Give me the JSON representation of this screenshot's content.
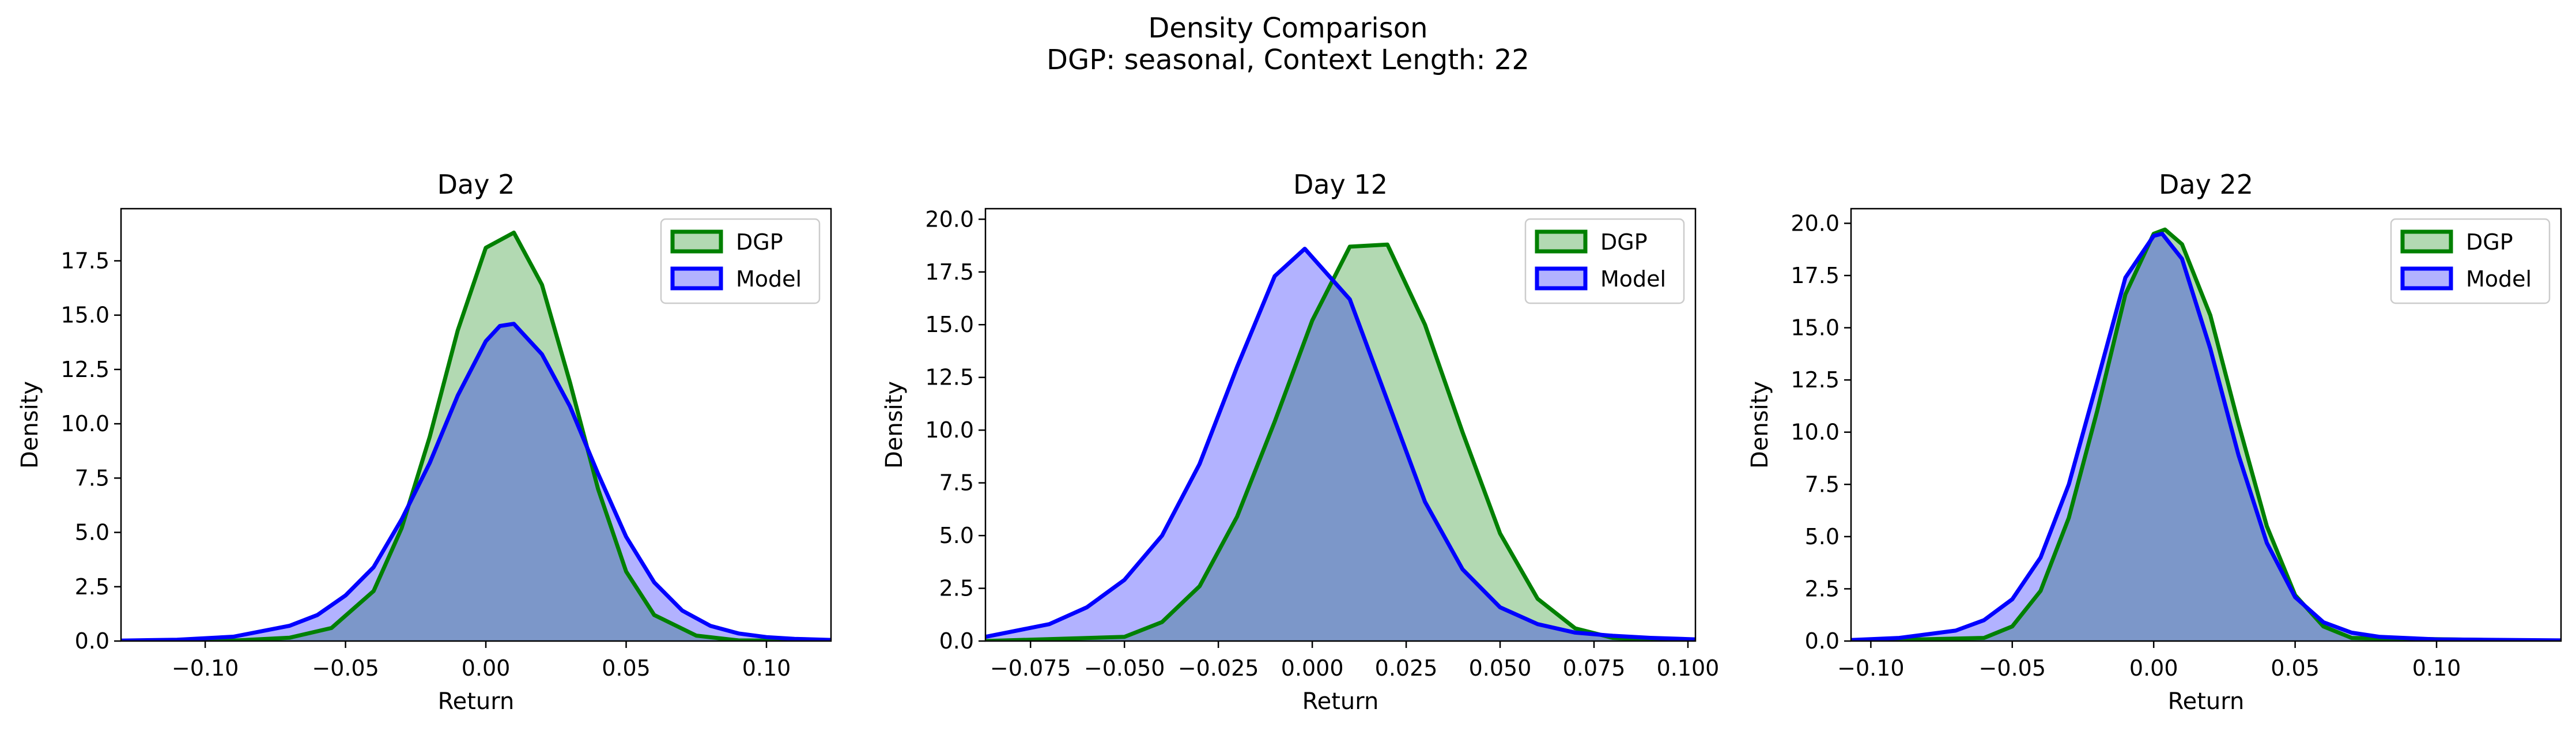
{
  "figure": {
    "title_line1": "Density Comparison",
    "title_line2": "DGP: seasonal, Context Length: 22"
  },
  "colors": {
    "dgp_line": "#008000",
    "dgp_fill": "#b0dab0",
    "model_line": "#0000ff",
    "model_fill": "#b0b0ff",
    "overlap_fill": "#7f9ac8",
    "overlap_dgp_line": "#1b5a55"
  },
  "chart_data": [
    {
      "type": "area",
      "title": "Day 2",
      "xlabel": "Return",
      "ylabel": "Density",
      "xlim": [
        -0.13,
        0.123
      ],
      "ylim": [
        0,
        19.9
      ],
      "xticks": [
        -0.1,
        -0.05,
        0.0,
        0.05,
        0.1
      ],
      "xtick_labels": [
        "−0.10",
        "−0.05",
        "0.00",
        "0.05",
        "0.10"
      ],
      "yticks": [
        0,
        2.5,
        5,
        7.5,
        10,
        12.5,
        15,
        17.5
      ],
      "ytick_labels": [
        "0.0",
        "2.5",
        "5.0",
        "7.5",
        "10.0",
        "12.5",
        "15.0",
        "17.5"
      ],
      "legend": [
        "DGP",
        "Model"
      ],
      "legend_position": "top-right",
      "series": [
        {
          "name": "DGP",
          "x": [
            -0.13,
            -0.09,
            -0.07,
            -0.055,
            -0.04,
            -0.03,
            -0.02,
            -0.01,
            0.0,
            0.01,
            0.02,
            0.03,
            0.04,
            0.05,
            0.06,
            0.075,
            0.09,
            0.123
          ],
          "y": [
            0,
            0.02,
            0.15,
            0.6,
            2.3,
            5.2,
            9.4,
            14.3,
            18.1,
            18.8,
            16.4,
            11.9,
            7.0,
            3.2,
            1.2,
            0.25,
            0.03,
            0
          ]
        },
        {
          "name": "Model",
          "x": [
            -0.13,
            -0.11,
            -0.09,
            -0.07,
            -0.06,
            -0.05,
            -0.04,
            -0.03,
            -0.02,
            -0.01,
            0.0,
            0.005,
            0.01,
            0.02,
            0.03,
            0.04,
            0.05,
            0.06,
            0.07,
            0.08,
            0.09,
            0.1,
            0.11,
            0.123
          ],
          "y": [
            0.02,
            0.06,
            0.2,
            0.7,
            1.2,
            2.1,
            3.4,
            5.6,
            8.2,
            11.3,
            13.8,
            14.5,
            14.6,
            13.2,
            10.8,
            7.7,
            4.8,
            2.7,
            1.4,
            0.7,
            0.35,
            0.18,
            0.1,
            0.05
          ]
        }
      ]
    },
    {
      "type": "area",
      "title": "Day 12",
      "xlabel": "Return",
      "ylabel": "Density",
      "xlim": [
        -0.087,
        0.102
      ],
      "ylim": [
        0,
        20.5
      ],
      "xticks": [
        -0.075,
        -0.05,
        -0.025,
        0.0,
        0.025,
        0.05,
        0.075,
        0.1
      ],
      "xtick_labels": [
        "−0.075",
        "−0.050",
        "−0.025",
        "0.000",
        "0.025",
        "0.050",
        "0.075",
        "0.100"
      ],
      "yticks": [
        0,
        2.5,
        5,
        7.5,
        10,
        12.5,
        15,
        17.5,
        20
      ],
      "ytick_labels": [
        "0.0",
        "2.5",
        "5.0",
        "7.5",
        "10.0",
        "12.5",
        "15.0",
        "17.5",
        "20.0"
      ],
      "legend": [
        "DGP",
        "Model"
      ],
      "legend_position": "top-right",
      "series": [
        {
          "name": "DGP",
          "x": [
            -0.087,
            -0.05,
            -0.04,
            -0.03,
            -0.02,
            -0.01,
            0.0,
            0.01,
            0.02,
            0.03,
            0.04,
            0.05,
            0.06,
            0.07,
            0.08,
            0.102
          ],
          "y": [
            0,
            0.2,
            0.9,
            2.6,
            5.9,
            10.4,
            15.2,
            18.7,
            18.8,
            15.0,
            9.9,
            5.1,
            2.0,
            0.6,
            0.15,
            0
          ]
        },
        {
          "name": "Model",
          "x": [
            -0.087,
            -0.07,
            -0.06,
            -0.05,
            -0.04,
            -0.03,
            -0.02,
            -0.01,
            -0.002,
            0.01,
            0.02,
            0.03,
            0.04,
            0.05,
            0.06,
            0.07,
            0.08,
            0.09,
            0.102
          ],
          "y": [
            0.2,
            0.8,
            1.6,
            2.9,
            5.0,
            8.4,
            13.0,
            17.3,
            18.6,
            16.2,
            11.4,
            6.6,
            3.4,
            1.6,
            0.8,
            0.4,
            0.25,
            0.15,
            0.08
          ]
        }
      ]
    },
    {
      "type": "area",
      "title": "Day 22",
      "xlabel": "Return",
      "ylabel": "Density",
      "xlim": [
        -0.107,
        0.144
      ],
      "ylim": [
        0,
        20.7
      ],
      "xticks": [
        -0.1,
        -0.05,
        0.0,
        0.05,
        0.1
      ],
      "xtick_labels": [
        "−0.10",
        "−0.05",
        "0.00",
        "0.05",
        "0.10"
      ],
      "yticks": [
        0,
        2.5,
        5,
        7.5,
        10,
        12.5,
        15,
        17.5,
        20
      ],
      "ytick_labels": [
        "0.0",
        "2.5",
        "5.0",
        "7.5",
        "10.0",
        "12.5",
        "15.0",
        "17.5",
        "20.0"
      ],
      "legend": [
        "DGP",
        "Model"
      ],
      "legend_position": "top-right",
      "series": [
        {
          "name": "DGP",
          "x": [
            -0.107,
            -0.06,
            -0.05,
            -0.04,
            -0.03,
            -0.02,
            -0.01,
            0.0,
            0.004,
            0.01,
            0.02,
            0.03,
            0.04,
            0.05,
            0.06,
            0.07,
            0.144
          ],
          "y": [
            0,
            0.15,
            0.7,
            2.4,
            5.9,
            11.0,
            16.6,
            19.5,
            19.7,
            19.0,
            15.6,
            10.4,
            5.5,
            2.2,
            0.7,
            0.15,
            0
          ]
        },
        {
          "name": "Model",
          "x": [
            -0.107,
            -0.09,
            -0.07,
            -0.06,
            -0.05,
            -0.04,
            -0.03,
            -0.02,
            -0.01,
            0.0,
            0.003,
            0.01,
            0.02,
            0.03,
            0.04,
            0.05,
            0.06,
            0.07,
            0.08,
            0.1,
            0.144
          ],
          "y": [
            0.05,
            0.15,
            0.5,
            1.0,
            2.0,
            4.0,
            7.5,
            12.4,
            17.4,
            19.4,
            19.5,
            18.3,
            14.0,
            8.9,
            4.7,
            2.1,
            0.9,
            0.4,
            0.2,
            0.08,
            0.03
          ]
        }
      ]
    }
  ]
}
